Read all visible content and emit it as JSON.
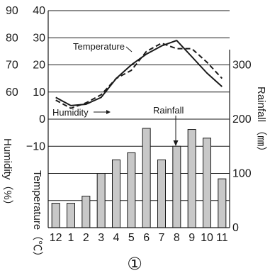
{
  "chart_data": {
    "type": "bar+line",
    "categories": [
      "12",
      "1",
      "2",
      "3",
      "4",
      "5",
      "6",
      "7",
      "8",
      "9",
      "10",
      "11"
    ],
    "temperature_axis": {
      "label": "Temperature（℃）",
      "ticks": [
        40,
        30,
        20,
        10,
        0,
        -10
      ],
      "ylim": [
        -40,
        40
      ]
    },
    "humidity_axis": {
      "label": "Humidity（%）",
      "ticks": [
        90,
        80,
        70,
        60
      ],
      "ylim": [
        10,
        90
      ]
    },
    "rainfall_axis": {
      "label": "Rainfall （㎜）",
      "ticks": [
        300,
        200,
        100,
        0
      ],
      "ylim": [
        0,
        400
      ]
    },
    "series": [
      {
        "name": "Temperature",
        "axis": "temperature",
        "style": "solid-line",
        "values": [
          8,
          5,
          5.5,
          8,
          15,
          20,
          24,
          27,
          29,
          23,
          17,
          12
        ]
      },
      {
        "name": "Humidity",
        "axis": "humidity",
        "style": "dashed-line",
        "values": [
          57,
          54,
          56,
          59,
          65,
          68,
          75,
          78,
          76,
          76,
          71,
          65
        ]
      },
      {
        "name": "Rainfall",
        "axis": "rainfall",
        "style": "bar",
        "values": [
          45,
          45,
          58,
          100,
          125,
          138,
          183,
          125,
          150,
          181,
          165,
          90
        ]
      }
    ],
    "grid": true,
    "figure_label": "①"
  },
  "colors": {
    "axis": "#1a1a1a",
    "bar_fill": "#c8c8c8"
  }
}
